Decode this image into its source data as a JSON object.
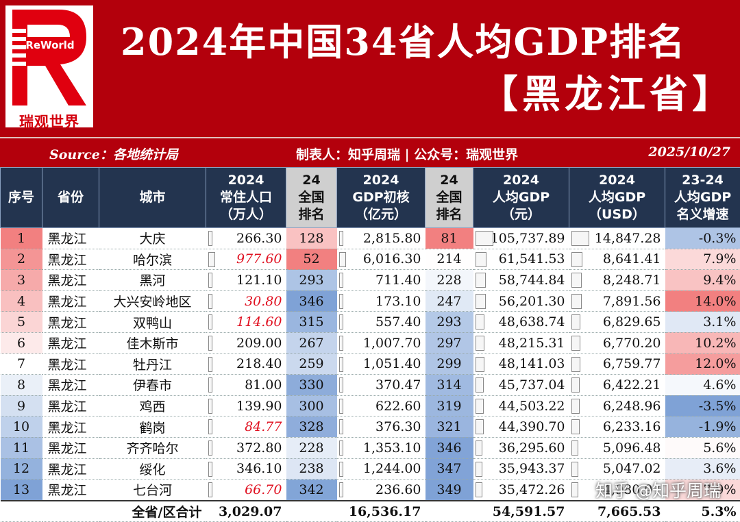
{
  "logo": {
    "wordmark": "ReWorld",
    "caption": "瑞观世界"
  },
  "title": "2024年中国34省人均GDP排名",
  "subtitle": "【黑龙江省】",
  "info": {
    "source": "Source：各地统计局",
    "maker": "制表人：知乎周瑞 | 公众号：瑞观世界",
    "date": "2025/10/27"
  },
  "headers": [
    [
      "序号"
    ],
    [
      "省份"
    ],
    [
      "城市"
    ],
    [
      "2024",
      "常住人口",
      "（万人）"
    ],
    [
      "24",
      "全国",
      "排名"
    ],
    [
      "2024",
      "GDP初核",
      "（亿元）"
    ],
    [
      "24",
      "全国",
      "排名"
    ],
    [
      "2024",
      "人均GDP",
      "（元）"
    ],
    [
      "2024",
      "人均GDP",
      "（USD）"
    ],
    [
      "23-24",
      "人均GDP",
      "名义增速"
    ]
  ],
  "rows": [
    {
      "no": "1",
      "prov": "黑龙江",
      "city": "大庆",
      "pop": "266.30",
      "pop_rank": "128",
      "gdp": "2,815.80",
      "gdp_rank": "81",
      "pc": "105,737.89",
      "usd": "14,847.28",
      "growth": "-0.3%",
      "pop_hl": false
    },
    {
      "no": "2",
      "prov": "黑龙江",
      "city": "哈尔滨",
      "pop": "977.60",
      "pop_rank": "52",
      "gdp": "6,016.30",
      "gdp_rank": "214",
      "pc": "61,541.53",
      "usd": "8,641.41",
      "growth": "7.9%",
      "pop_hl": true
    },
    {
      "no": "3",
      "prov": "黑龙江",
      "city": "黑河",
      "pop": "121.10",
      "pop_rank": "293",
      "gdp": "711.40",
      "gdp_rank": "228",
      "pc": "58,744.84",
      "usd": "8,248.71",
      "growth": "9.4%",
      "pop_hl": false
    },
    {
      "no": "4",
      "prov": "黑龙江",
      "city": "大兴安岭地区",
      "pop": "30.80",
      "pop_rank": "346",
      "gdp": "173.10",
      "gdp_rank": "247",
      "pc": "56,201.30",
      "usd": "7,891.56",
      "growth": "14.0%",
      "pop_hl": true
    },
    {
      "no": "5",
      "prov": "黑龙江",
      "city": "双鸭山",
      "pop": "114.60",
      "pop_rank": "315",
      "gdp": "557.40",
      "gdp_rank": "293",
      "pc": "48,638.74",
      "usd": "6,829.65",
      "growth": "3.1%",
      "pop_hl": true
    },
    {
      "no": "6",
      "prov": "黑龙江",
      "city": "佳木斯市",
      "pop": "209.00",
      "pop_rank": "267",
      "gdp": "1,007.70",
      "gdp_rank": "297",
      "pc": "48,215.31",
      "usd": "6,770.20",
      "growth": "10.2%",
      "pop_hl": false
    },
    {
      "no": "7",
      "prov": "黑龙江",
      "city": "牡丹江",
      "pop": "218.40",
      "pop_rank": "259",
      "gdp": "1,051.40",
      "gdp_rank": "299",
      "pc": "48,141.03",
      "usd": "6,759.77",
      "growth": "12.0%",
      "pop_hl": false
    },
    {
      "no": "8",
      "prov": "黑龙江",
      "city": "伊春市",
      "pop": "81.00",
      "pop_rank": "330",
      "gdp": "370.47",
      "gdp_rank": "314",
      "pc": "45,737.04",
      "usd": "6,422.21",
      "growth": "4.6%",
      "pop_hl": false
    },
    {
      "no": "9",
      "prov": "黑龙江",
      "city": "鸡西",
      "pop": "139.90",
      "pop_rank": "300",
      "gdp": "622.60",
      "gdp_rank": "319",
      "pc": "44,503.22",
      "usd": "6,248.96",
      "growth": "-3.5%",
      "pop_hl": false
    },
    {
      "no": "10",
      "prov": "黑龙江",
      "city": "鹤岗",
      "pop": "84.77",
      "pop_rank": "328",
      "gdp": "376.30",
      "gdp_rank": "321",
      "pc": "44,390.70",
      "usd": "6,233.16",
      "growth": "-1.9%",
      "pop_hl": true
    },
    {
      "no": "11",
      "prov": "黑龙江",
      "city": "齐齐哈尔",
      "pop": "372.80",
      "pop_rank": "228",
      "gdp": "1,353.10",
      "gdp_rank": "346",
      "pc": "36,295.60",
      "usd": "5,096.48",
      "growth": "5.6%",
      "pop_hl": false
    },
    {
      "no": "12",
      "prov": "黑龙江",
      "city": "绥化",
      "pop": "346.10",
      "pop_rank": "238",
      "gdp": "1,244.00",
      "gdp_rank": "347",
      "pc": "35,943.37",
      "usd": "5,047.02",
      "growth": "3.6%",
      "pop_hl": false
    },
    {
      "no": "13",
      "prov": "黑龙江",
      "city": "七台河",
      "pop": "66.70",
      "pop_rank": "342",
      "gdp": "236.60",
      "gdp_rank": "349",
      "pc": "35,472.26",
      "usd": "4,980.97",
      "growth": "7.9%",
      "pop_hl": true
    }
  ],
  "total": {
    "label": "全省/区合计",
    "pop": "3,029.07",
    "gdp": "16,536.17",
    "pc": "54,591.57",
    "usd": "7,665.53",
    "growth": "5.3%"
  },
  "watermark": "知乎 @知乎周瑞",
  "colors": {
    "header_red": "#b3000c",
    "header_navy": "#23344f",
    "accent_red": "#e01020"
  }
}
